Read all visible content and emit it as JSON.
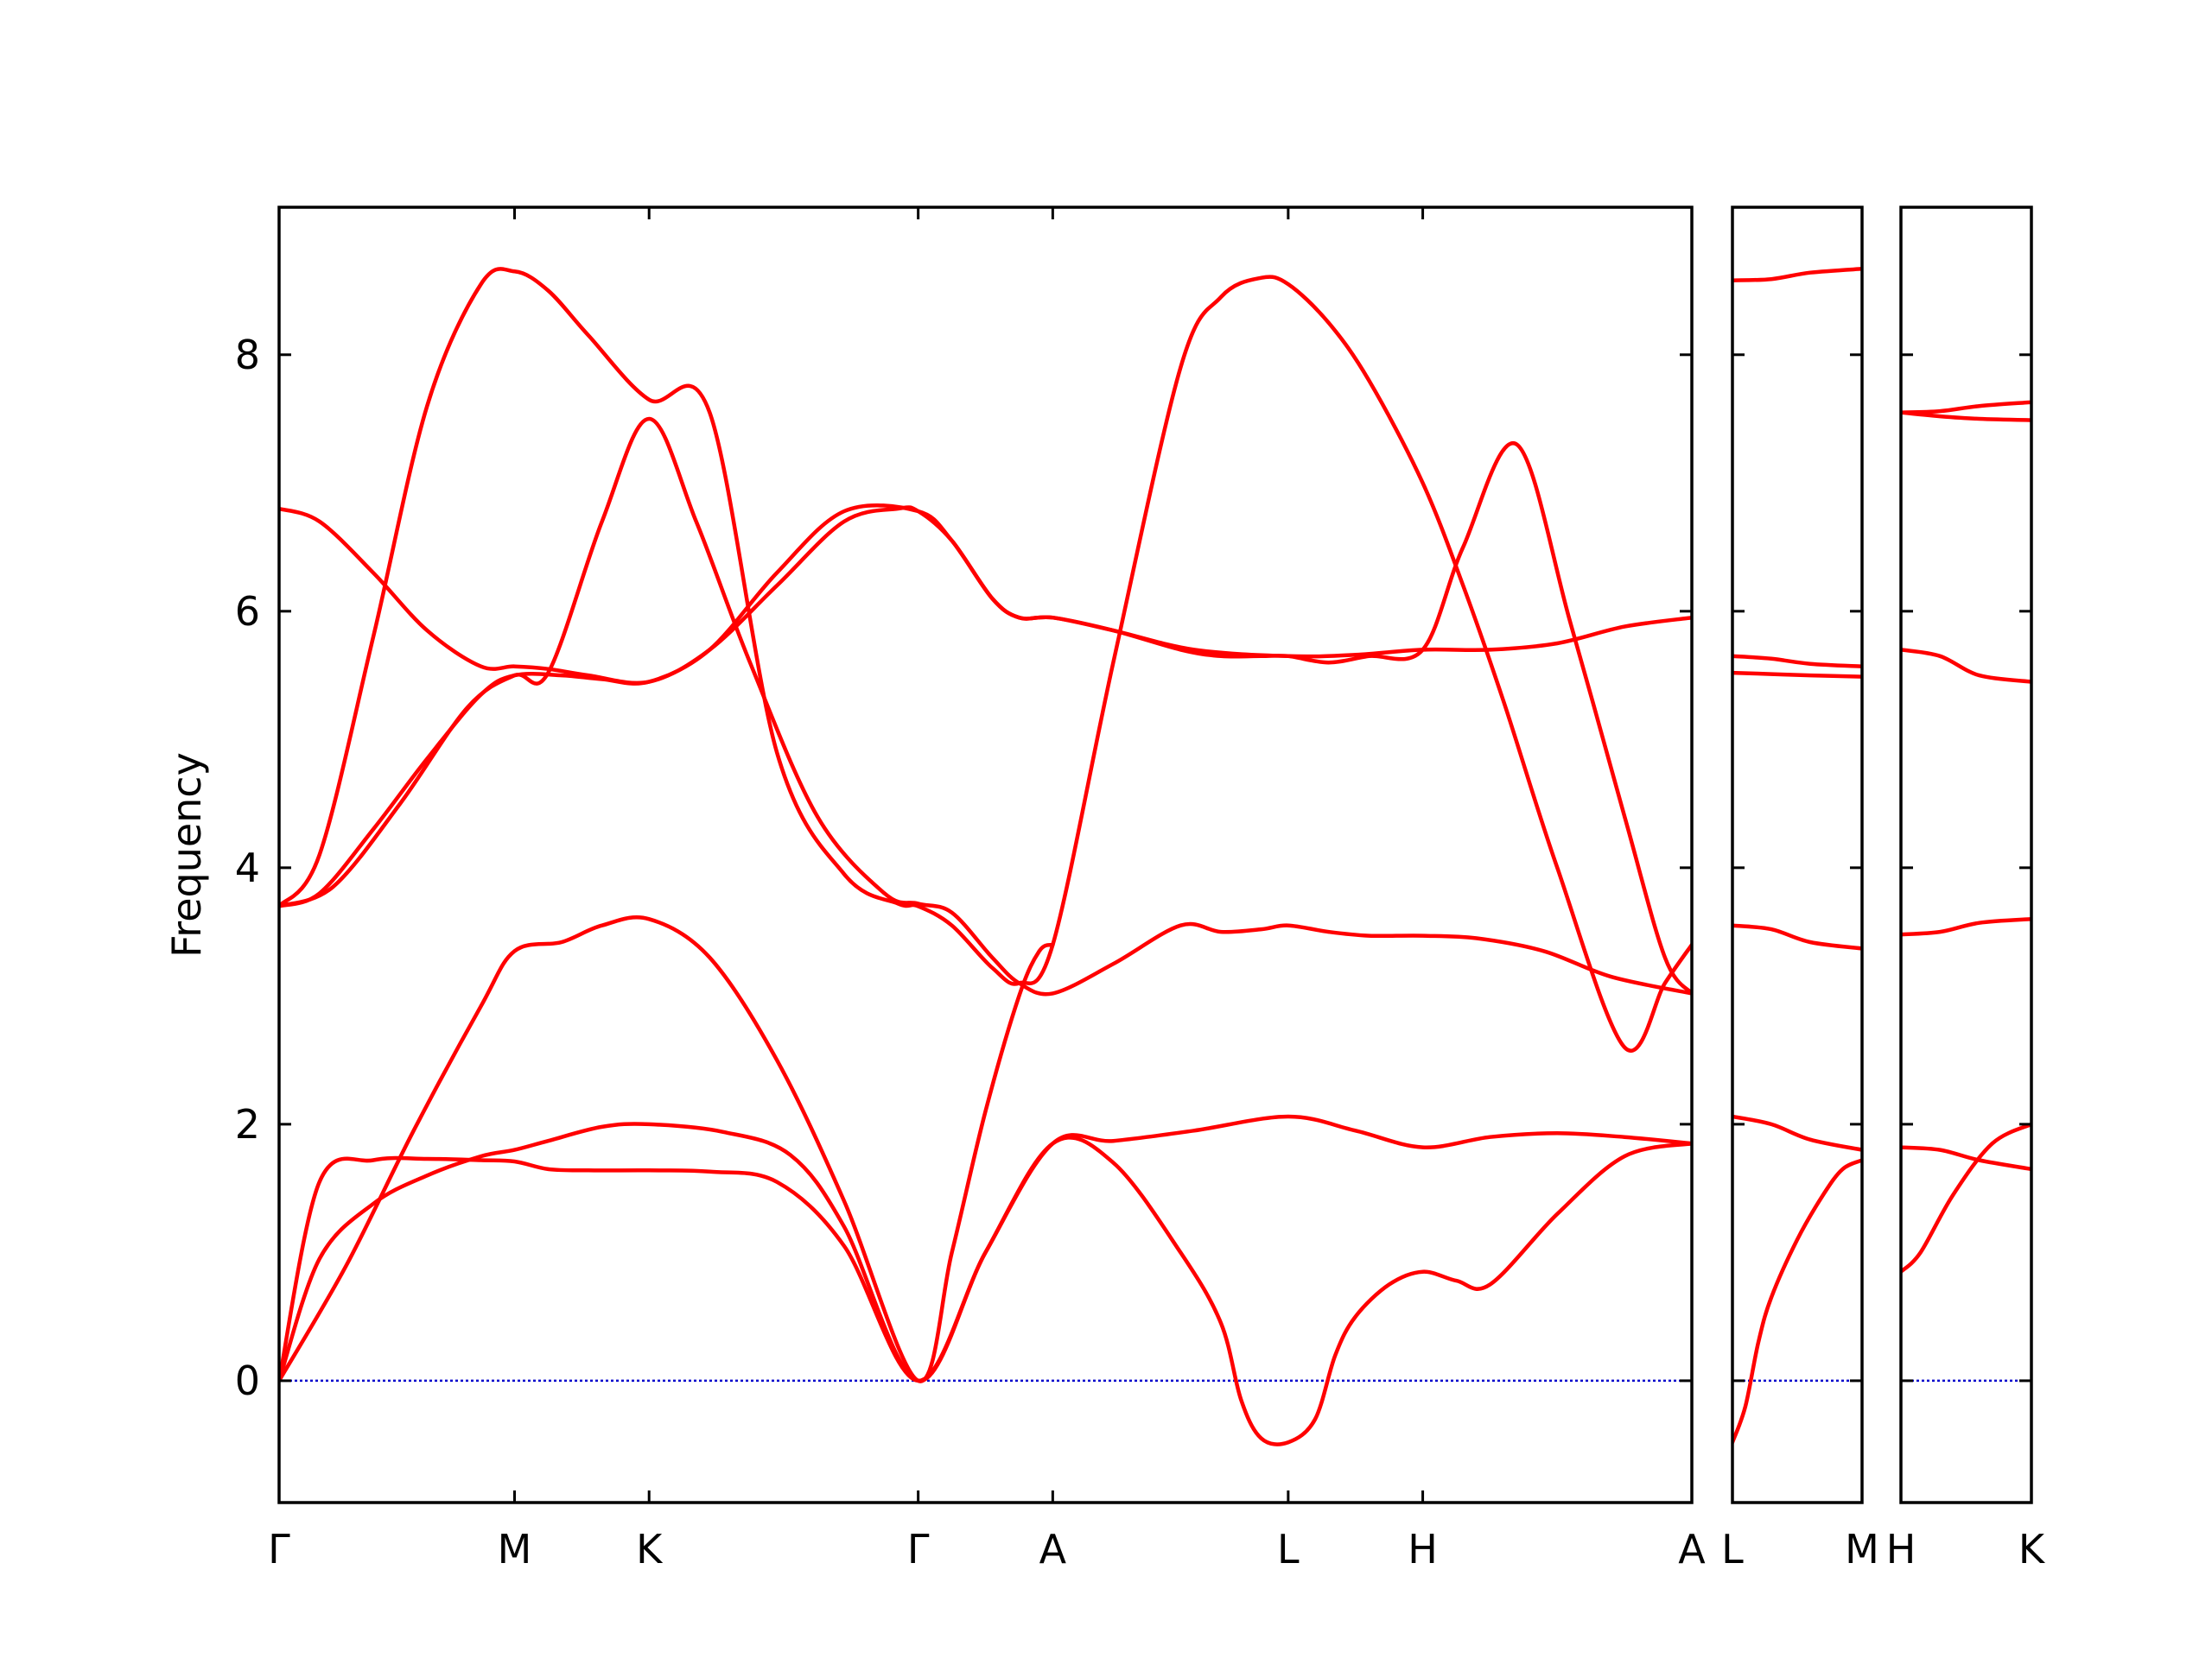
{
  "chart_data": {
    "type": "line",
    "ylabel": "Frequency",
    "ylim": [
      -0.95,
      9.15
    ],
    "yticks": [
      0,
      2,
      4,
      6,
      8
    ],
    "grid": false,
    "line_color": "#ff0000",
    "zero_line_color": "#0000cc",
    "panels": [
      {
        "id": "main",
        "xlim": [
          0,
          10.5
        ],
        "xticks": [
          {
            "x": 0,
            "label": "Γ"
          },
          {
            "x": 1.75,
            "label": "M"
          },
          {
            "x": 2.75,
            "label": "K"
          },
          {
            "x": 4.75,
            "label": "Γ"
          },
          {
            "x": 5.75,
            "label": "A"
          },
          {
            "x": 7.5,
            "label": "L"
          },
          {
            "x": 8.5,
            "label": "H"
          },
          {
            "x": 10.5,
            "label": "A"
          }
        ],
        "series": [
          {
            "x": [
              0,
              0.3,
              0.7,
              1.1,
              1.5,
              1.75,
              2.0,
              2.3,
              2.75,
              3.2,
              3.7,
              4.2,
              4.75,
              5.25,
              5.75,
              6.2,
              6.8,
              7.5,
              8.0,
              8.5,
              9.0,
              9.5,
              10.0,
              10.5
            ],
            "y": [
              0,
              1.55,
              1.72,
              1.73,
              1.72,
              1.71,
              1.65,
              1.64,
              1.64,
              1.63,
              1.55,
              1.05,
              0,
              1.0,
              1.85,
              1.87,
              1.95,
              2.06,
              1.95,
              1.82,
              1.9,
              1.93,
              1.9,
              1.85
            ]
          },
          {
            "x": [
              0,
              0.3,
              0.7,
              1.1,
              1.5,
              1.75,
              2.0,
              2.4,
              2.75,
              3.3,
              3.8,
              4.2,
              4.75,
              5.25,
              5.75,
              6.2,
              6.7,
              7.0,
              7.15,
              7.3,
              7.5,
              7.7,
              7.85,
              8.0,
              8.25,
              8.5,
              8.75,
              9.0,
              9.5,
              10.0,
              10.5
            ],
            "y": [
              0,
              0.95,
              1.38,
              1.6,
              1.75,
              1.8,
              1.87,
              1.98,
              2.0,
              1.94,
              1.76,
              1.2,
              0,
              1.0,
              1.85,
              1.7,
              1.0,
              0.45,
              -0.15,
              -0.45,
              -0.48,
              -0.3,
              0.2,
              0.5,
              0.75,
              0.85,
              0.78,
              0.75,
              1.3,
              1.75,
              1.85
            ]
          },
          {
            "x": [
              0,
              0.5,
              1.0,
              1.5,
              1.75,
              2.1,
              2.4,
              2.75,
              3.2,
              3.7,
              4.2,
              4.75,
              5.0,
              5.25,
              5.5,
              5.65,
              5.75
            ],
            "y": [
              0,
              0.9,
              1.95,
              2.92,
              3.35,
              3.42,
              3.55,
              3.6,
              3.3,
              2.5,
              1.4,
              0,
              1.0,
              2.1,
              3.0,
              3.35,
              3.4
            ]
          },
          {
            "x": [
              0,
              0.3,
              0.7,
              1.1,
              1.5,
              1.75,
              2.1,
              2.4,
              2.75,
              3.2,
              3.7,
              4.2,
              4.75,
              5.0,
              5.3,
              5.5,
              5.75,
              6.2,
              6.8,
              7.5,
              8.0,
              8.5,
              9.0,
              9.5,
              10.0,
              10.5
            ],
            "y": [
              3.7,
              3.8,
              4.3,
              4.85,
              5.35,
              5.5,
              5.5,
              5.47,
              5.45,
              5.7,
              6.3,
              6.78,
              6.78,
              6.55,
              6.1,
              5.95,
              5.95,
              5.85,
              5.7,
              5.65,
              5.66,
              5.7,
              5.7,
              5.75,
              5.88,
              5.95
            ]
          },
          {
            "x": [
              0,
              0.3,
              0.7,
              1.1,
              1.5,
              1.75,
              2.0,
              2.3,
              2.75,
              3.2,
              3.7,
              4.2,
              4.6,
              4.75,
              5.0,
              5.3,
              5.5,
              5.75,
              6.2,
              6.7,
              7.0,
              7.3,
              7.5,
              7.8,
              8.1,
              8.5,
              8.8,
              9.1,
              9.5,
              10.0,
              10.3,
              10.5
            ],
            "y": [
              3.7,
              4.1,
              5.8,
              7.6,
              8.55,
              8.65,
              8.5,
              8.15,
              7.65,
              7.55,
              4.9,
              3.95,
              3.72,
              3.7,
              3.55,
              3.22,
              3.1,
              3.4,
              5.6,
              7.9,
              8.45,
              8.6,
              8.55,
              8.25,
              7.8,
              7.0,
              6.2,
              5.3,
              4.0,
              2.6,
              3.1,
              3.4
            ]
          },
          {
            "x": [
              0,
              0.3,
              0.7,
              1.1,
              1.5,
              1.75,
              2.0,
              2.3,
              2.75,
              3.2,
              3.7,
              4.2,
              4.6,
              4.75,
              5.0,
              5.3,
              5.5,
              5.75,
              6.2,
              6.7,
              7.0,
              7.3,
              7.5,
              7.8,
              8.1,
              8.5,
              8.8,
              9.2,
              9.6,
              10.0,
              10.3,
              10.5
            ],
            "y": [
              6.8,
              6.7,
              6.3,
              5.85,
              5.57,
              5.57,
              5.55,
              5.5,
              5.45,
              5.7,
              6.2,
              6.7,
              6.8,
              6.78,
              6.55,
              6.1,
              5.95,
              5.95,
              5.85,
              5.7,
              5.65,
              5.65,
              5.65,
              5.6,
              5.65,
              5.7,
              6.5,
              7.3,
              5.9,
              4.4,
              3.3,
              3.02
            ]
          },
          {
            "x": [
              0,
              0.4,
              0.9,
              1.4,
              1.75,
              2.0,
              2.4,
              2.75,
              3.1,
              3.5,
              4.0,
              4.5,
              4.75,
              5.0,
              5.3,
              5.5,
              5.75,
              6.2,
              6.7,
              7.0,
              7.3,
              7.5,
              7.8,
              8.1,
              8.5,
              8.9,
              9.4,
              9.9,
              10.5
            ],
            "y": [
              3.7,
              3.85,
              4.5,
              5.25,
              5.5,
              5.52,
              6.7,
              7.5,
              6.7,
              5.6,
              4.4,
              3.8,
              3.72,
              3.65,
              3.3,
              3.1,
              3.02,
              3.25,
              3.55,
              3.5,
              3.52,
              3.55,
              3.5,
              3.47,
              3.47,
              3.45,
              3.35,
              3.15,
              3.02
            ]
          }
        ]
      },
      {
        "id": "L-M",
        "xlim": [
          0,
          1
        ],
        "xticks": [
          {
            "x": 0,
            "label": "L"
          },
          {
            "x": 1,
            "label": "M"
          }
        ],
        "series": [
          {
            "x": [
              0,
              0.3,
              0.6,
              1.0
            ],
            "y": [
              8.58,
              8.59,
              8.64,
              8.67
            ]
          },
          {
            "x": [
              0,
              0.3,
              0.6,
              1.0
            ],
            "y": [
              5.65,
              5.63,
              5.59,
              5.57
            ]
          },
          {
            "x": [
              0,
              0.3,
              0.6,
              1.0
            ],
            "y": [
              5.52,
              5.51,
              5.5,
              5.49
            ]
          },
          {
            "x": [
              0,
              0.3,
              0.6,
              1.0
            ],
            "y": [
              3.55,
              3.52,
              3.42,
              3.37
            ]
          },
          {
            "x": [
              0,
              0.3,
              0.6,
              1.0
            ],
            "y": [
              2.06,
              2.0,
              1.88,
              1.8
            ]
          },
          {
            "x": [
              0,
              0.1,
              0.2,
              0.3,
              0.5,
              0.7,
              0.85,
              1.0
            ],
            "y": [
              -0.48,
              -0.2,
              0.3,
              0.65,
              1.1,
              1.45,
              1.65,
              1.72
            ]
          }
        ]
      },
      {
        "id": "H-K",
        "xlim": [
          0,
          1
        ],
        "xticks": [
          {
            "x": 0,
            "label": "H"
          },
          {
            "x": 1,
            "label": "K"
          }
        ],
        "series": [
          {
            "x": [
              0,
              0.3,
              0.6,
              1.0
            ],
            "y": [
              7.55,
              7.56,
              7.6,
              7.63
            ]
          },
          {
            "x": [
              0,
              0.3,
              0.6,
              1.0
            ],
            "y": [
              7.55,
              7.52,
              7.5,
              7.49
            ]
          },
          {
            "x": [
              0,
              0.3,
              0.6,
              1.0
            ],
            "y": [
              5.7,
              5.65,
              5.5,
              5.45
            ]
          },
          {
            "x": [
              0,
              0.3,
              0.6,
              1.0
            ],
            "y": [
              3.48,
              3.5,
              3.57,
              3.6
            ]
          },
          {
            "x": [
              0,
              0.3,
              0.6,
              1.0
            ],
            "y": [
              1.82,
              1.8,
              1.72,
              1.65
            ]
          },
          {
            "x": [
              0,
              0.15,
              0.4,
              0.7,
              1.0
            ],
            "y": [
              0.85,
              1.0,
              1.45,
              1.85,
              2.0
            ]
          }
        ]
      }
    ]
  }
}
